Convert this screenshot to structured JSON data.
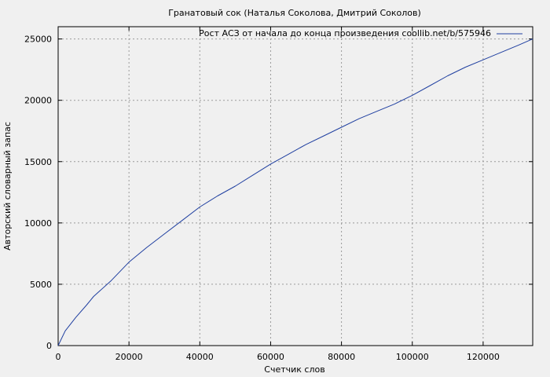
{
  "chart_data": {
    "type": "line",
    "title": "Гранатовый сок (Наталья Соколова, Дмитрий Соколов)",
    "xlabel": "Счетчик слов",
    "ylabel": "Авторский словарный запас",
    "xlim": [
      0,
      134000
    ],
    "ylim": [
      0,
      26000
    ],
    "xticks": [
      0,
      20000,
      40000,
      60000,
      80000,
      100000,
      120000
    ],
    "yticks": [
      0,
      5000,
      10000,
      15000,
      20000,
      25000
    ],
    "xtick_labels": [
      "0",
      "20000",
      "40000",
      "60000",
      "80000",
      "100000",
      "120000"
    ],
    "ytick_labels": [
      "0",
      "5000",
      "10000",
      "15000",
      "20000",
      "25000"
    ],
    "grid": true,
    "legend_position": "top-right",
    "line_color": "#1f3fa0",
    "series": [
      {
        "name": "Рост АСЗ от начала до конца произведения coollib.net/b/575946",
        "x": [
          0,
          2000,
          5000,
          8000,
          10000,
          15000,
          20000,
          25000,
          30000,
          35000,
          40000,
          45000,
          50000,
          55000,
          60000,
          65000,
          70000,
          75000,
          80000,
          85000,
          90000,
          95000,
          100000,
          105000,
          110000,
          115000,
          120000,
          125000,
          130000,
          134000
        ],
        "y": [
          0,
          1200,
          2300,
          3300,
          4000,
          5300,
          6800,
          8000,
          9100,
          10200,
          11300,
          12200,
          13000,
          13900,
          14800,
          15600,
          16400,
          17100,
          17800,
          18500,
          19100,
          19700,
          20400,
          21200,
          22000,
          22700,
          23300,
          23900,
          24500,
          25000
        ]
      }
    ]
  }
}
